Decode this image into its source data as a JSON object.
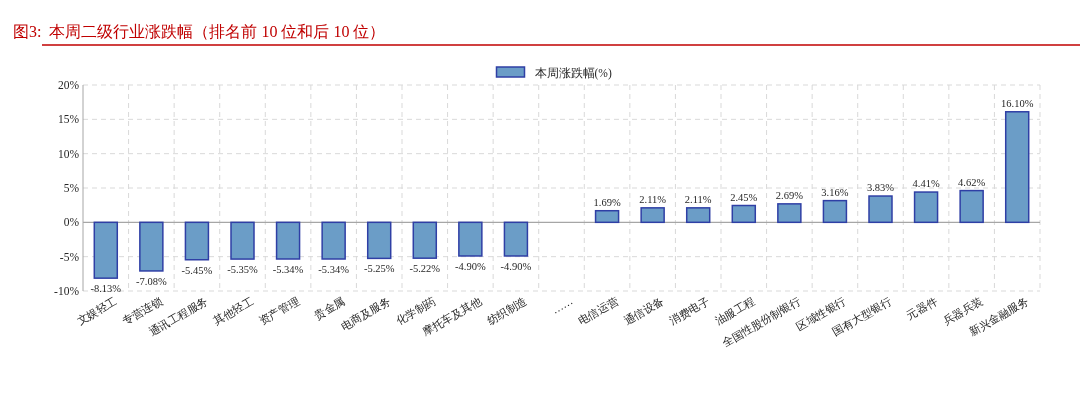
{
  "chart_data": {
    "type": "bar",
    "title": "图3:  本周二级行业涨跌幅（排名前 10 位和后 10 位）",
    "categories": [
      "文娱轻工",
      "专营连锁",
      "通讯工程服务",
      "其他轻工",
      "资产管理",
      "贵金属",
      "电商及服务",
      "化学制药",
      "摩托车及其他",
      "纺织制造",
      "……",
      "电信运营",
      "通信设备",
      "消费电子",
      "油服工程",
      "全国性股份制银行",
      "区域性银行",
      "国有大型银行",
      "元器件",
      "兵器兵装",
      "新兴金融服务"
    ],
    "series": [
      {
        "name": "本周涨跌幅(%)",
        "color": "#6b9dc7",
        "values": [
          -8.13,
          -7.08,
          -5.45,
          -5.35,
          -5.34,
          -5.34,
          -5.25,
          -5.22,
          -4.9,
          -4.9,
          null,
          1.69,
          2.11,
          2.11,
          2.45,
          2.69,
          3.16,
          3.83,
          4.41,
          4.62,
          16.1
        ],
        "value_labels": [
          "-8.13%",
          "-7.08%",
          "-5.45%",
          "-5.35%",
          "-5.34%",
          "-5.34%",
          "-5.25%",
          "-5.22%",
          "-4.90%",
          "-4.90%",
          null,
          "1.69%",
          "2.11%",
          "2.11%",
          "2.45%",
          "2.69%",
          "3.16%",
          "3.83%",
          "4.41%",
          "4.62%",
          "16.10%"
        ]
      }
    ],
    "ylim": [
      -10,
      20
    ],
    "yticks": [
      {
        "value": -10,
        "label": "-10%"
      },
      {
        "value": -5,
        "label": "-5%"
      },
      {
        "value": 0,
        "label": "0%"
      },
      {
        "value": 5,
        "label": "5%"
      },
      {
        "value": 10,
        "label": "10%"
      },
      {
        "value": 15,
        "label": "15%"
      },
      {
        "value": 20,
        "label": "20%"
      }
    ],
    "grid": true,
    "legend": "top"
  }
}
